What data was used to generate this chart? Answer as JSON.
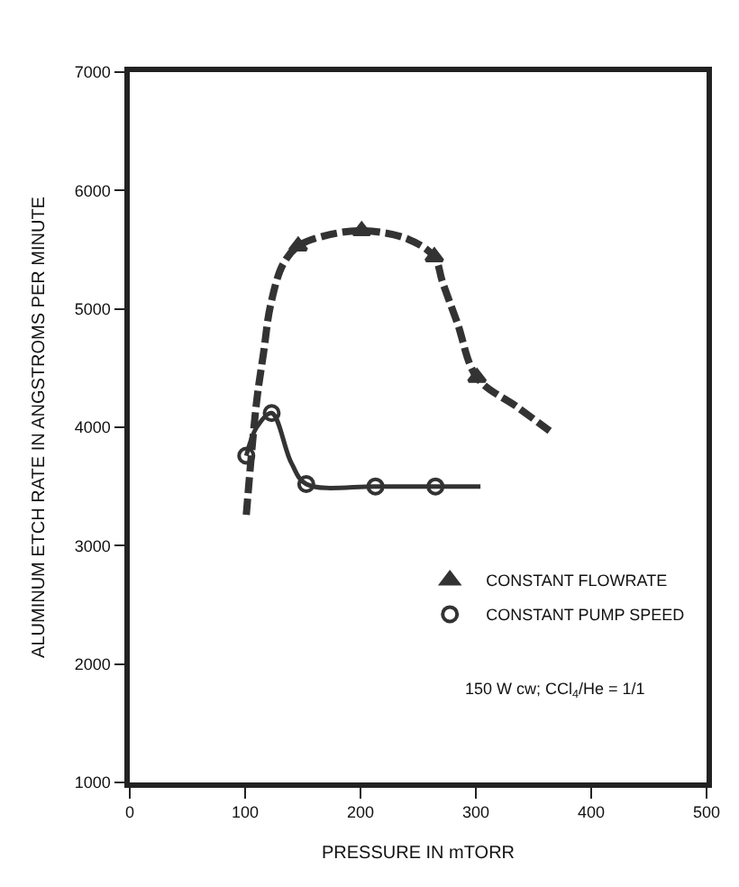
{
  "chart_data": {
    "type": "line",
    "xlabel": "PRESSURE IN mTORR",
    "ylabel": "ALUMINUM ETCH RATE IN ANGSTROMS PER MINUTE",
    "xlim": [
      0,
      500
    ],
    "xticks": [
      0,
      100,
      200,
      300,
      400,
      500
    ],
    "ylim": [
      1000,
      7000
    ],
    "yticks": [
      1000,
      2000,
      3000,
      4000,
      5000,
      6000,
      7000
    ],
    "legend": "bottom right",
    "series": [
      {
        "line_style": "dashed",
        "marker": "none",
        "color": "#333333",
        "x": [
          101,
          110,
          116,
          122,
          133,
          146,
          166,
          201,
          241,
          264,
          271,
          284,
          301,
          336,
          364
        ],
        "values": [
          3260,
          4220,
          4630,
          5030,
          5380,
          5530,
          5610,
          5660,
          5590,
          5440,
          5230,
          4880,
          4420,
          4170,
          3970
        ]
      },
      {
        "type": "scatter",
        "name": "CONSTANT FLOWRATE",
        "marker": "triangle",
        "color": "#333333",
        "x": [
          146,
          201,
          264,
          301
        ],
        "values": [
          5530,
          5660,
          5440,
          4420
        ]
      },
      {
        "line_style": "solid",
        "marker": "none",
        "color": "#333333",
        "x": [
          101,
          110,
          123,
          140,
          153,
          213,
          265,
          304
        ],
        "values": [
          3760,
          4000,
          4120,
          3700,
          3520,
          3500,
          3500,
          3500
        ]
      },
      {
        "type": "scatter",
        "name": "CONSTANT PUMP SPEED",
        "marker": "circle",
        "color": "#333333",
        "x": [
          101,
          123,
          153,
          213,
          265
        ],
        "values": [
          3760,
          4120,
          3520,
          3500,
          3500
        ]
      }
    ],
    "annotations": [
      "150 W cw; CCl$_{4}$/He = 1/1"
    ]
  }
}
